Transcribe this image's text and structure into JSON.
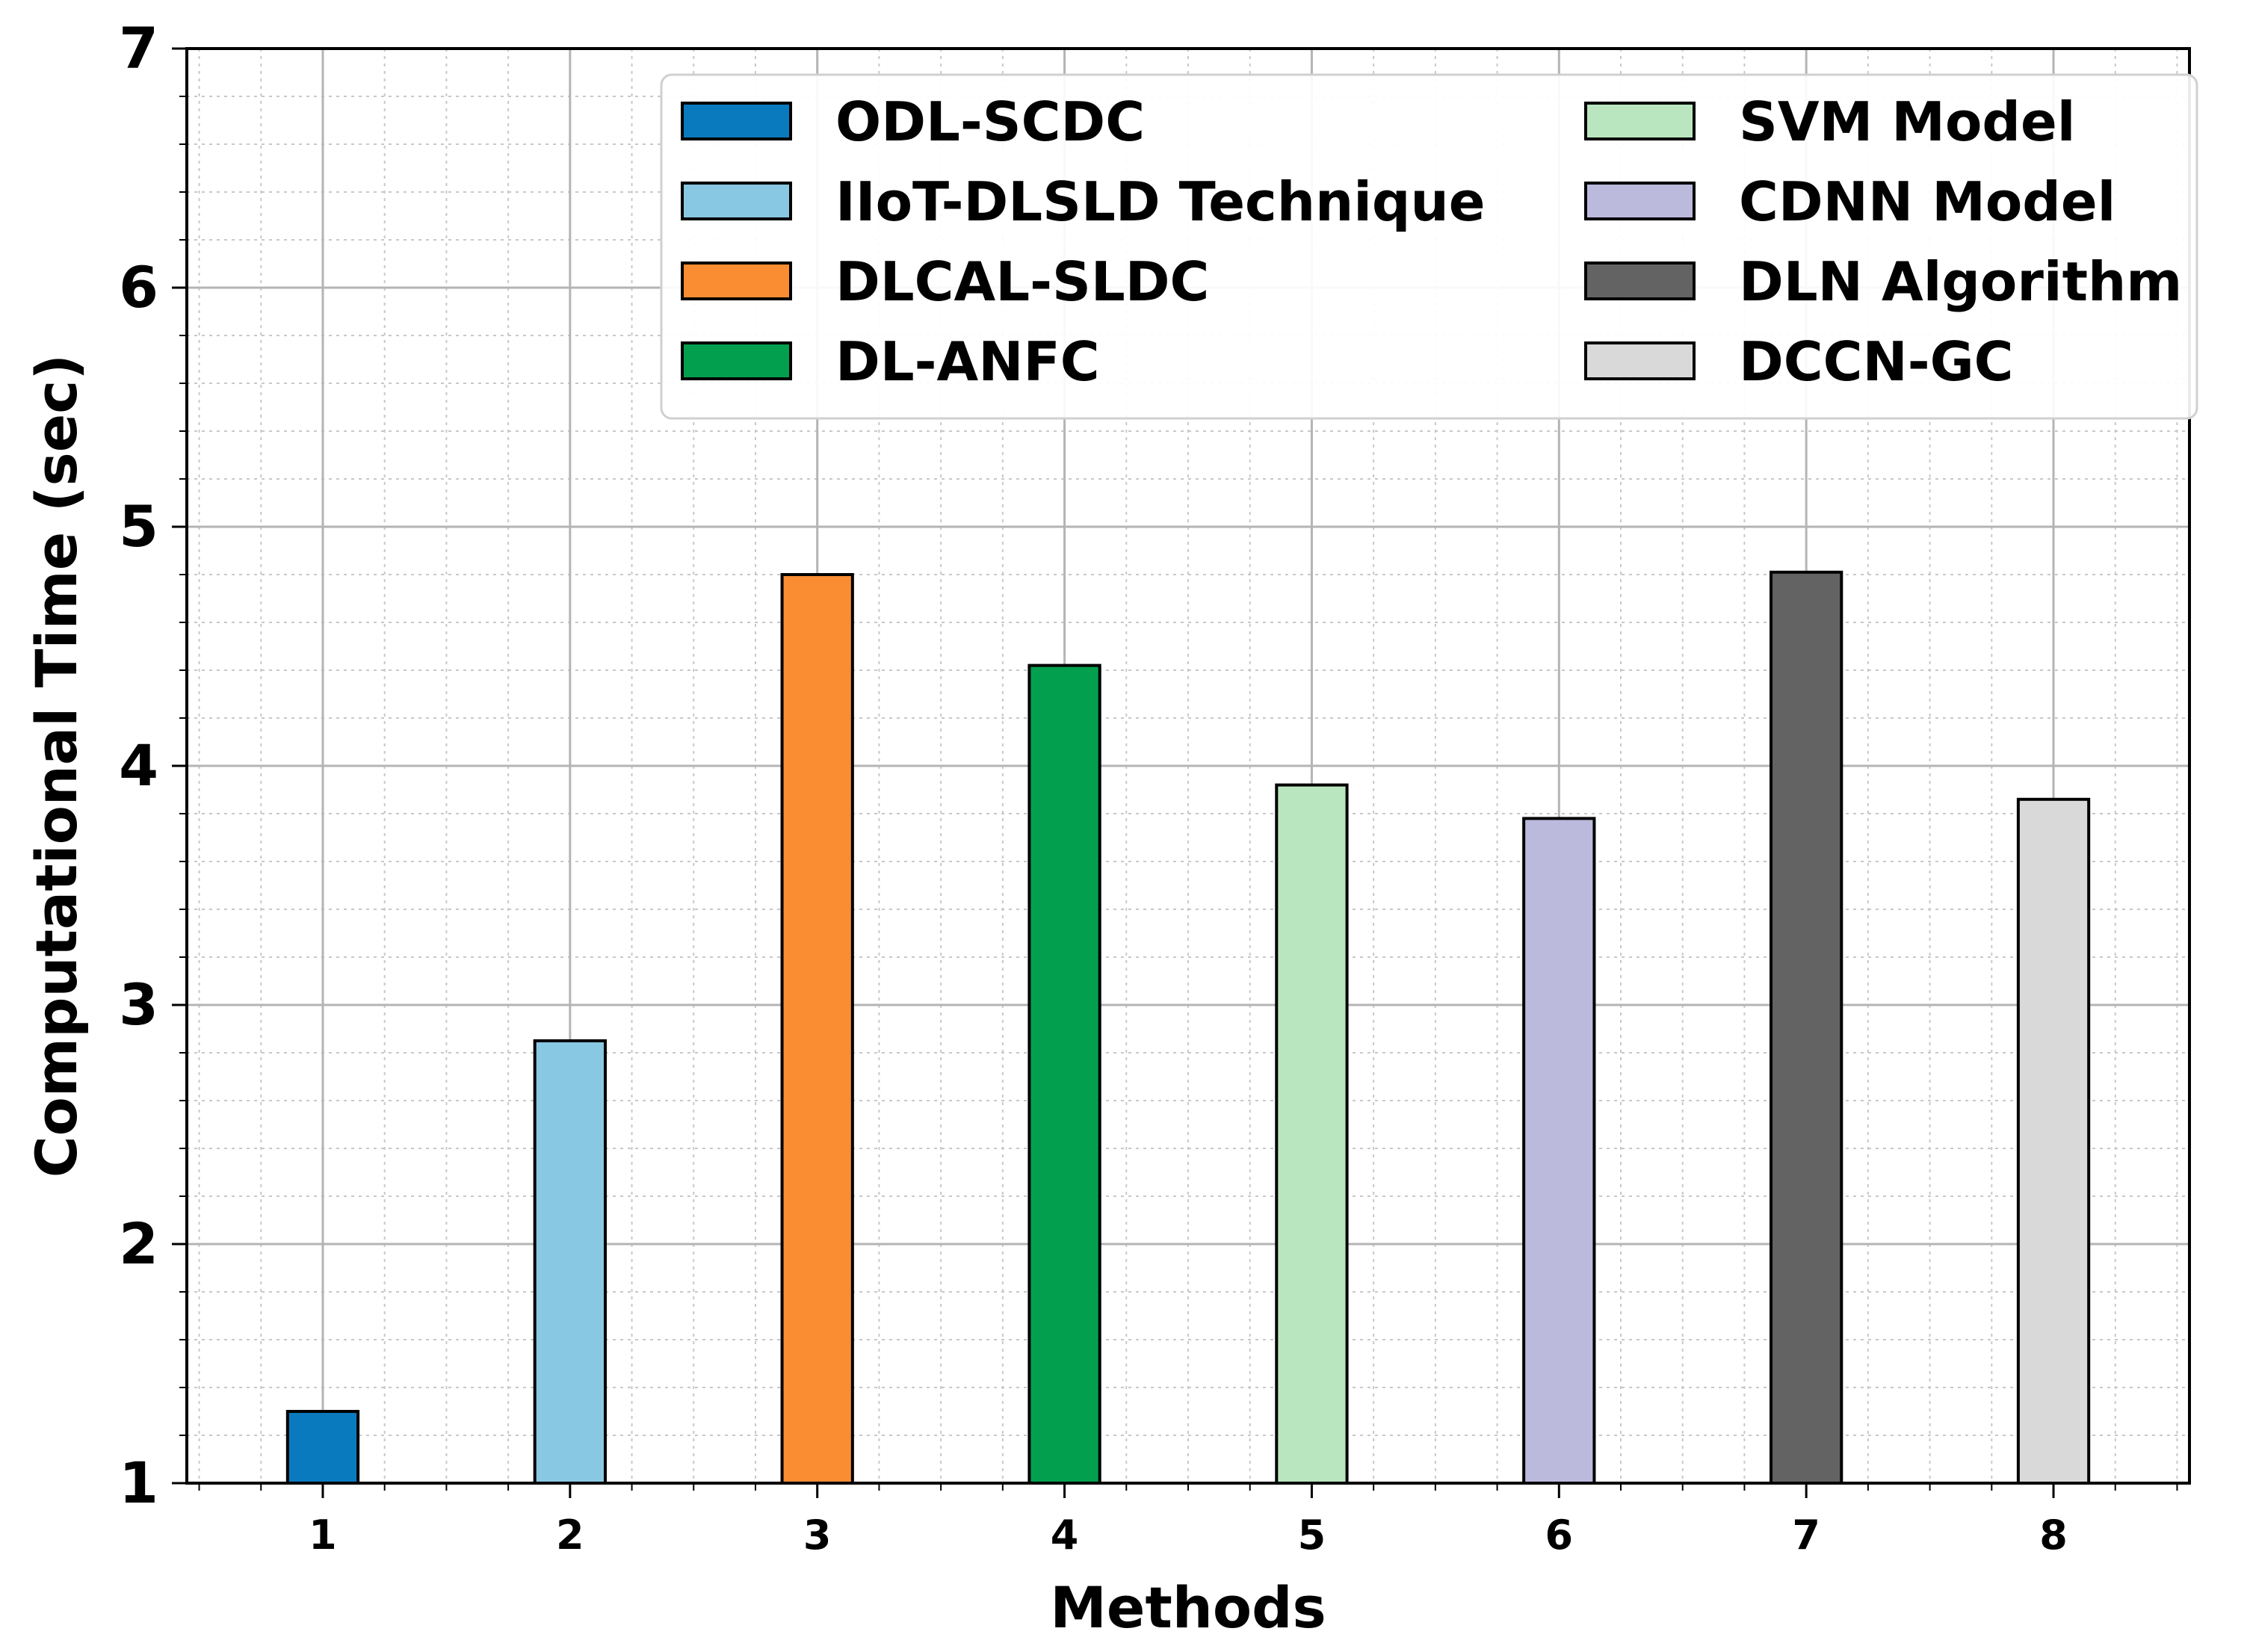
{
  "chart_data": {
    "type": "bar",
    "title": "",
    "xlabel": "Methods",
    "ylabel": "Computational Time (sec)",
    "ylim": [
      1,
      7
    ],
    "yticks": [
      1,
      2,
      3,
      4,
      5,
      6,
      7
    ],
    "categories": [
      "1",
      "2",
      "3",
      "4",
      "5",
      "6",
      "7",
      "8"
    ],
    "grid": true,
    "legend_position": "top-right",
    "legend_columns": 2,
    "series": [
      {
        "name": "ODL-SCDC",
        "category": "1",
        "value": 1.3,
        "color": "#0a7abf"
      },
      {
        "name": "IIoT-DLSLD Technique",
        "category": "2",
        "value": 2.85,
        "color": "#89c8e2"
      },
      {
        "name": "DLCAL-SLDC",
        "category": "3",
        "value": 4.8,
        "color": "#fa8c32"
      },
      {
        "name": "DL-ANFC",
        "category": "4",
        "value": 4.42,
        "color": "#02a04e"
      },
      {
        "name": "SVM Model",
        "category": "5",
        "value": 3.92,
        "color": "#b9e6be"
      },
      {
        "name": "CDNN Model",
        "category": "6",
        "value": 3.78,
        "color": "#bbbadc"
      },
      {
        "name": "DLN Algorithm",
        "category": "7",
        "value": 4.81,
        "color": "#636363"
      },
      {
        "name": "DCCN-GC",
        "category": "8",
        "value": 3.86,
        "color": "#d9d9d9"
      }
    ]
  }
}
